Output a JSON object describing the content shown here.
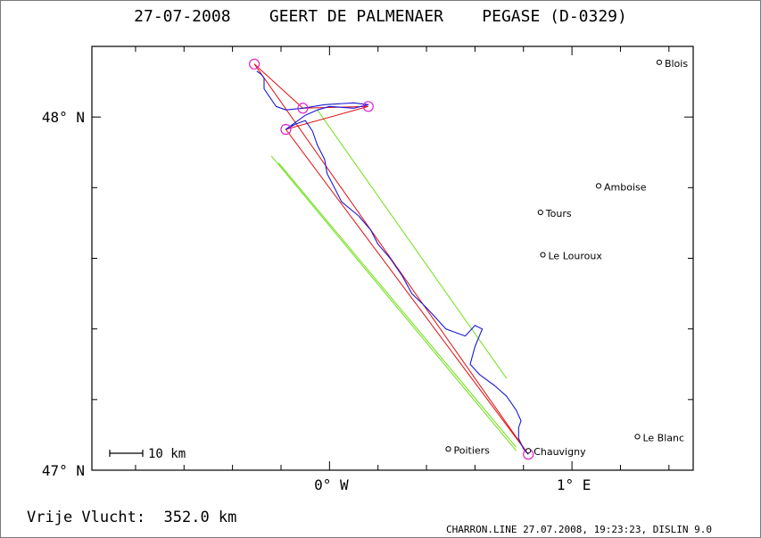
{
  "header": {
    "title": "27-07-2008    GEERT DE PALMENAER    PEGASE (D-0329)"
  },
  "map": {
    "lat_range": [
      47.0,
      48.2
    ],
    "lon_range": [
      -0.98,
      1.5
    ],
    "lat_labels": [
      {
        "value": 48.0,
        "label": "48° N"
      },
      {
        "value": 47.0,
        "label": "47° N"
      }
    ],
    "lon_labels": [
      {
        "value": 0.0,
        "label": "0° W"
      },
      {
        "value": 1.0,
        "label": "1° E"
      }
    ],
    "scale_bar": {
      "label": "10 km",
      "km": 10
    },
    "colors": {
      "track": "#1a1ad6",
      "optimized_legs": "#e01010",
      "sector": "#6ee016",
      "turnpoints": "#e020d0",
      "frame": "#000000"
    },
    "towns": [
      {
        "name": "Blois",
        "lat": 48.155,
        "lon": 1.36
      },
      {
        "name": "Amboise",
        "lat": 47.805,
        "lon": 1.11
      },
      {
        "name": "Tours",
        "lat": 47.73,
        "lon": 0.87
      },
      {
        "name": "Le Louroux",
        "lat": 47.61,
        "lon": 0.88
      },
      {
        "name": "Le Blanc",
        "lat": 47.095,
        "lon": 1.27
      },
      {
        "name": "Poitiers",
        "lat": 47.06,
        "lon": 0.49
      },
      {
        "name": "Chauvigny",
        "lat": 47.055,
        "lon": 0.82
      }
    ],
    "turnpoints": [
      {
        "lat": 48.15,
        "lon": -0.31
      },
      {
        "lat": 48.025,
        "lon": -0.11
      },
      {
        "lat": 48.03,
        "lon": 0.16
      },
      {
        "lat": 47.965,
        "lon": -0.18
      },
      {
        "lat": 47.045,
        "lon": 0.82
      }
    ],
    "optimized_path": [
      {
        "lat": 48.15,
        "lon": -0.31
      },
      {
        "lat": 48.025,
        "lon": -0.11
      },
      {
        "lat": 48.03,
        "lon": 0.16
      },
      {
        "lat": 47.965,
        "lon": -0.18
      },
      {
        "lat": 47.045,
        "lon": 0.82
      }
    ],
    "start_leg": [
      {
        "lat": 47.045,
        "lon": 0.82
      },
      {
        "lat": 48.15,
        "lon": -0.31
      }
    ],
    "sector_lines": [
      [
        {
          "lat": 47.055,
          "lon": 0.77
        },
        {
          "lat": 47.89,
          "lon": -0.24
        }
      ],
      [
        {
          "lat": 47.065,
          "lon": 0.77
        },
        {
          "lat": 47.87,
          "lon": -0.21
        }
      ],
      [
        {
          "lat": 47.26,
          "lon": 0.73
        },
        {
          "lat": 48.02,
          "lon": -0.05
        }
      ]
    ],
    "track": [
      {
        "lat": 48.13,
        "lon": -0.3
      },
      {
        "lat": 48.12,
        "lon": -0.28
      },
      {
        "lat": 48.11,
        "lon": -0.27
      },
      {
        "lat": 48.08,
        "lon": -0.27
      },
      {
        "lat": 48.06,
        "lon": -0.25
      },
      {
        "lat": 48.03,
        "lon": -0.22
      },
      {
        "lat": 48.02,
        "lon": -0.18
      },
      {
        "lat": 48.025,
        "lon": -0.11
      },
      {
        "lat": 48.035,
        "lon": -0.02
      },
      {
        "lat": 48.04,
        "lon": 0.1
      },
      {
        "lat": 48.035,
        "lon": 0.16
      },
      {
        "lat": 48.025,
        "lon": 0.1
      },
      {
        "lat": 48.03,
        "lon": 0.0
      },
      {
        "lat": 48.02,
        "lon": -0.05
      },
      {
        "lat": 48.005,
        "lon": -0.1
      },
      {
        "lat": 47.98,
        "lon": -0.15
      },
      {
        "lat": 47.965,
        "lon": -0.18
      },
      {
        "lat": 47.98,
        "lon": -0.14
      },
      {
        "lat": 47.99,
        "lon": -0.1
      },
      {
        "lat": 47.96,
        "lon": -0.07
      },
      {
        "lat": 47.92,
        "lon": -0.05
      },
      {
        "lat": 47.88,
        "lon": -0.02
      },
      {
        "lat": 47.84,
        "lon": -0.01
      },
      {
        "lat": 47.8,
        "lon": 0.02
      },
      {
        "lat": 47.76,
        "lon": 0.05
      },
      {
        "lat": 47.72,
        "lon": 0.12
      },
      {
        "lat": 47.68,
        "lon": 0.17
      },
      {
        "lat": 47.64,
        "lon": 0.2
      },
      {
        "lat": 47.6,
        "lon": 0.25
      },
      {
        "lat": 47.55,
        "lon": 0.3
      },
      {
        "lat": 47.5,
        "lon": 0.34
      },
      {
        "lat": 47.46,
        "lon": 0.4
      },
      {
        "lat": 47.43,
        "lon": 0.44
      },
      {
        "lat": 47.4,
        "lon": 0.48
      },
      {
        "lat": 47.38,
        "lon": 0.56
      },
      {
        "lat": 47.41,
        "lon": 0.6
      },
      {
        "lat": 47.4,
        "lon": 0.63
      },
      {
        "lat": 47.35,
        "lon": 0.6
      },
      {
        "lat": 47.3,
        "lon": 0.58
      },
      {
        "lat": 47.27,
        "lon": 0.62
      },
      {
        "lat": 47.24,
        "lon": 0.68
      },
      {
        "lat": 47.21,
        "lon": 0.73
      },
      {
        "lat": 47.17,
        "lon": 0.77
      },
      {
        "lat": 47.14,
        "lon": 0.79
      },
      {
        "lat": 47.12,
        "lon": 0.78
      },
      {
        "lat": 47.09,
        "lon": 0.78
      },
      {
        "lat": 47.06,
        "lon": 0.8
      },
      {
        "lat": 47.045,
        "lon": 0.82
      }
    ]
  },
  "footer": {
    "distance_text": "Vrije Vlucht:  352.0 km",
    "credit_text": "CHARRON.LINE 27.07.2008, 19:23:23, DISLIN 9.0"
  }
}
